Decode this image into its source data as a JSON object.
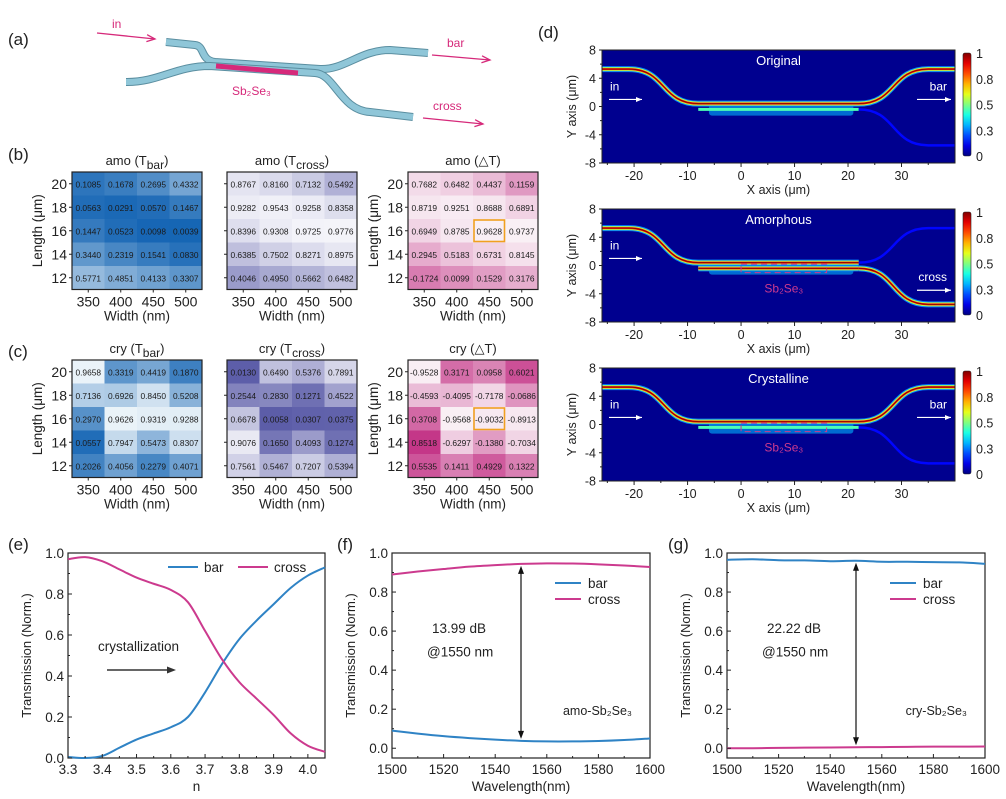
{
  "panels": {
    "a": {
      "label": "(a)",
      "in": "in",
      "bar": "bar",
      "cross": "cross",
      "material": "Sb₂Se₃"
    },
    "b": {
      "label": "(b)"
    },
    "c": {
      "label": "(c)"
    },
    "d": {
      "label": "(d)"
    },
    "e": {
      "label": "(e)"
    },
    "f": {
      "label": "(f)"
    },
    "g": {
      "label": "(g)"
    }
  },
  "colors": {
    "bar": "#2f83c5",
    "cross": "#cc3a8e",
    "highlight": "#f0a020",
    "waveguide": "#8fc6d8",
    "material": "#d6297a"
  },
  "chart_data": [
    {
      "id": "amo_tbar",
      "type": "heatmap",
      "title": "amo (T",
      "title_sub": "bar",
      "title_end": ")",
      "palette": "blue",
      "xlabel": "Width (nm)",
      "ylabel": "Length (μm)",
      "x": [
        "350",
        "400",
        "450",
        "500"
      ],
      "y": [
        "20",
        "18",
        "16",
        "14",
        "12"
      ],
      "values": [
        [
          0.1085,
          0.1678,
          0.2695,
          0.4332
        ],
        [
          0.0563,
          0.0291,
          0.057,
          0.1467
        ],
        [
          0.1447,
          0.0523,
          0.0098,
          0.0039
        ],
        [
          0.344,
          0.2319,
          0.1541,
          0.083
        ],
        [
          0.5771,
          0.4851,
          0.4133,
          0.3307
        ]
      ],
      "labels": [
        [
          "0.1085",
          "0.1678",
          "0.2695",
          "0.4332"
        ],
        [
          "0.0563",
          "0.0291",
          "0.0570",
          "0.1467"
        ],
        [
          "0.1447",
          "0.0523",
          "0.0098",
          "0.0039"
        ],
        [
          "0.3440",
          "0.2319",
          "0.1541",
          "0.0830"
        ],
        [
          "0.5771",
          "0.4851",
          "0.4133",
          "0.3307"
        ]
      ],
      "range": [
        0,
        1
      ],
      "highlight": null
    },
    {
      "id": "amo_tcross",
      "type": "heatmap",
      "title": "amo (T",
      "title_sub": "cross",
      "title_end": ")",
      "palette": "purple",
      "xlabel": "Width (nm)",
      "ylabel": "",
      "x": [
        "350",
        "400",
        "450",
        "500"
      ],
      "y": [
        "20",
        "18",
        "16",
        "14",
        "12"
      ],
      "values": [
        [
          0.8767,
          0.816,
          0.7132,
          0.5492
        ],
        [
          0.9282,
          0.9543,
          0.9258,
          0.8358
        ],
        [
          0.8396,
          0.9308,
          0.9725,
          0.9776
        ],
        [
          0.6385,
          0.7502,
          0.8271,
          0.8975
        ],
        [
          0.4046,
          0.495,
          0.5662,
          0.6482
        ]
      ],
      "labels": [
        [
          "0.8767",
          "0.8160",
          "0.7132",
          "0.5492"
        ],
        [
          "0.9282",
          "0.9543",
          "0.9258",
          "0.8358"
        ],
        [
          "0.8396",
          "0.9308",
          "0.9725",
          "0.9776"
        ],
        [
          "0.6385",
          "0.7502",
          "0.8271",
          "0.8975"
        ],
        [
          "0.4046",
          "0.4950",
          "0.5662",
          "0.6482"
        ]
      ],
      "range": [
        0,
        1
      ],
      "highlight": null
    },
    {
      "id": "amo_dt",
      "type": "heatmap",
      "title": "amo (△T)",
      "title_sub": "",
      "title_end": "",
      "palette": "pink",
      "xlabel": "Width (nm)",
      "ylabel": "Length (μm)",
      "x": [
        "350",
        "400",
        "450",
        "500"
      ],
      "y": [
        "20",
        "18",
        "16",
        "14",
        "12"
      ],
      "values": [
        [
          0.7682,
          0.6482,
          0.4437,
          0.1159
        ],
        [
          0.8719,
          0.9251,
          0.8688,
          0.6891
        ],
        [
          0.6949,
          0.8785,
          0.9628,
          0.9737
        ],
        [
          0.2945,
          0.5183,
          0.6731,
          0.8145
        ],
        [
          -0.1724,
          0.0099,
          0.1529,
          0.3176
        ]
      ],
      "labels": [
        [
          "0.7682",
          "0.6482",
          "0.4437",
          "0.1159"
        ],
        [
          "0.8719",
          "0.9251",
          "0.8688",
          "0.6891"
        ],
        [
          "0.6949",
          "0.8785",
          "0.9628",
          "0.9737"
        ],
        [
          "0.2945",
          "0.5183",
          "0.6731",
          "0.8145"
        ],
        [
          "-0.1724",
          "0.0099",
          "0.1529",
          "0.3176"
        ]
      ],
      "range": [
        -1,
        1
      ],
      "highlight": [
        2,
        2
      ]
    },
    {
      "id": "cry_tbar",
      "type": "heatmap",
      "title": "cry (T",
      "title_sub": "bar",
      "title_end": ")",
      "palette": "blue",
      "xlabel": "Width (nm)",
      "ylabel": "Length (μm)",
      "x": [
        "350",
        "400",
        "450",
        "500"
      ],
      "y": [
        "20",
        "18",
        "16",
        "14",
        "12"
      ],
      "values": [
        [
          0.9658,
          0.3319,
          0.4419,
          0.187
        ],
        [
          0.7136,
          0.6926,
          0.845,
          0.5208
        ],
        [
          0.297,
          0.9626,
          0.9319,
          0.9288
        ],
        [
          0.0557,
          0.7947,
          0.5473,
          0.8307
        ],
        [
          0.2026,
          0.4056,
          0.2279,
          0.4071
        ]
      ],
      "labels": [
        [
          "0.9658",
          "0.3319",
          "0.4419",
          "0.1870"
        ],
        [
          "0.7136",
          "0.6926",
          "0.8450",
          "0.5208"
        ],
        [
          "0.2970",
          "0.9626",
          "0.9319",
          "0.9288"
        ],
        [
          "0.0557",
          "0.7947",
          "0.5473",
          "0.8307"
        ],
        [
          "0.2026",
          "0.4056",
          "0.2279",
          "0.4071"
        ]
      ],
      "range": [
        0,
        1
      ],
      "highlight": null
    },
    {
      "id": "cry_tcross",
      "type": "heatmap",
      "title": "cry (T",
      "title_sub": "cross",
      "title_end": ")",
      "palette": "purple",
      "xlabel": "Width (nm)",
      "ylabel": "",
      "x": [
        "350",
        "400",
        "450",
        "500"
      ],
      "y": [
        "20",
        "18",
        "16",
        "14",
        "12"
      ],
      "values": [
        [
          0.013,
          0.649,
          0.5376,
          0.7891
        ],
        [
          0.2544,
          0.283,
          0.1271,
          0.4522
        ],
        [
          0.6678,
          0.0058,
          0.0307,
          0.0375
        ],
        [
          0.9076,
          0.165,
          0.4093,
          0.1274
        ],
        [
          0.7561,
          0.5467,
          0.7207,
          0.5394
        ]
      ],
      "labels": [
        [
          "0.0130",
          "0.6490",
          "0.5376",
          "0.7891"
        ],
        [
          "0.2544",
          "0.2830",
          "0.1271",
          "0.4522"
        ],
        [
          "0.6678",
          "0.0058",
          "0.0307",
          "0.0375"
        ],
        [
          "0.9076",
          "0.1650",
          "0.4093",
          "0.1274"
        ],
        [
          "0.7561",
          "0.5467",
          "0.7207",
          "0.5394"
        ]
      ],
      "range": [
        0,
        1
      ],
      "highlight": null
    },
    {
      "id": "cry_dt",
      "type": "heatmap",
      "title": "cry (△T)",
      "title_sub": "",
      "title_end": "",
      "palette": "pink",
      "xlabel": "Width (nm)",
      "ylabel": "Length (μm)",
      "x": [
        "350",
        "400",
        "450",
        "500"
      ],
      "y": [
        "20",
        "18",
        "16",
        "14",
        "12"
      ],
      "values": [
        [
          -0.9528,
          0.3171,
          0.0958,
          0.6021
        ],
        [
          -0.4593,
          -0.4095,
          -0.7178,
          -0.0686
        ],
        [
          0.3708,
          -0.9568,
          -0.9032,
          -0.8913
        ],
        [
          0.8518,
          -0.6297,
          -0.138,
          -0.7034
        ],
        [
          0.5535,
          0.1411,
          0.4929,
          0.1322
        ]
      ],
      "labels": [
        [
          "-0.9528",
          "0.3171",
          "0.0958",
          "0.6021"
        ],
        [
          "-0.4593",
          "-0.4095",
          "-0.7178",
          "-0.0686"
        ],
        [
          "0.3708",
          "-0.9568",
          "-0.9032",
          "-0.8913"
        ],
        [
          "0.8518",
          "-0.6297",
          "-0.1380",
          "-0.7034"
        ],
        [
          "0.5535",
          "0.1411",
          "0.4929",
          "0.1322"
        ]
      ],
      "range": [
        -1,
        1
      ],
      "highlight": [
        2,
        2
      ],
      "invert": true
    },
    {
      "id": "field_original",
      "type": "heatmap",
      "title": "Original",
      "state": "original",
      "xlabel": "X axis (μm)",
      "ylabel": "Y axis (μm)",
      "xlim": [
        -26,
        40
      ],
      "ylim": [
        -8,
        8
      ],
      "xticks": [
        -20,
        -10,
        0,
        10,
        20,
        30
      ],
      "yticks": [
        8,
        4,
        0,
        -4,
        -8
      ],
      "colorbar": {
        "ticks": [
          "1",
          "0.8",
          "0.5",
          "0.3",
          "0"
        ],
        "range": [
          0,
          1
        ]
      },
      "annotations": {
        "input": "in",
        "output": "bar",
        "material": ""
      }
    },
    {
      "id": "field_amorphous",
      "type": "heatmap",
      "title": "Amorphous",
      "state": "amorphous",
      "xlabel": "X axis (μm)",
      "ylabel": "Y axis (μm)",
      "xlim": [
        -26,
        40
      ],
      "ylim": [
        -8,
        8
      ],
      "xticks": [
        -20,
        -10,
        0,
        10,
        20,
        30
      ],
      "yticks": [
        8,
        4,
        0,
        -4,
        -8
      ],
      "colorbar": {
        "ticks": [
          "1",
          "0.8",
          "0.5",
          "0.3",
          "0"
        ],
        "range": [
          0,
          1
        ]
      },
      "annotations": {
        "input": "in",
        "output": "cross",
        "material": "Sb₂Se₃"
      },
      "material_region_x": [
        0,
        16
      ]
    },
    {
      "id": "field_crystalline",
      "type": "heatmap",
      "title": "Crystalline",
      "state": "crystalline",
      "xlabel": "X axis (μm)",
      "ylabel": "Y axis (μm)",
      "xlim": [
        -26,
        40
      ],
      "ylim": [
        -8,
        8
      ],
      "xticks": [
        -20,
        -10,
        0,
        10,
        20,
        30
      ],
      "yticks": [
        8,
        4,
        0,
        -4,
        -8
      ],
      "colorbar": {
        "ticks": [
          "1",
          "0.8",
          "0.5",
          "0.3",
          "0"
        ],
        "range": [
          0,
          1
        ]
      },
      "annotations": {
        "input": "in",
        "output": "bar",
        "material": "Sb₂Se₃"
      },
      "material_region_x": [
        0,
        16
      ]
    },
    {
      "id": "trans_vs_n",
      "type": "line",
      "title": "",
      "xlabel": "n",
      "ylabel": "Transmission (Norm.)",
      "xlim": [
        3.3,
        4.05
      ],
      "ylim": [
        0,
        1
      ],
      "xticks": [
        "3.3",
        "3.4",
        "3.5",
        "3.6",
        "3.7",
        "3.8",
        "3.9",
        "4.0"
      ],
      "yticks": [
        "0.0",
        "0.2",
        "0.4",
        "0.6",
        "0.8",
        "1.0"
      ],
      "legend": "top-right-horizontal",
      "annotation": "crystallization",
      "x": [
        3.3,
        3.35,
        3.4,
        3.45,
        3.5,
        3.55,
        3.6,
        3.65,
        3.7,
        3.75,
        3.8,
        3.85,
        3.9,
        3.95,
        4.0,
        4.05
      ],
      "series": [
        {
          "name": "bar",
          "color": "#2f83c5",
          "values": [
            0.005,
            0.0,
            0.01,
            0.05,
            0.09,
            0.12,
            0.15,
            0.2,
            0.32,
            0.46,
            0.58,
            0.67,
            0.75,
            0.83,
            0.89,
            0.93
          ]
        },
        {
          "name": "cross",
          "color": "#cc3a8e",
          "values": [
            0.97,
            0.98,
            0.96,
            0.92,
            0.88,
            0.85,
            0.82,
            0.76,
            0.62,
            0.48,
            0.37,
            0.29,
            0.21,
            0.12,
            0.06,
            0.03
          ]
        }
      ]
    },
    {
      "id": "amo_spectrum",
      "type": "line",
      "title": "",
      "xlabel": "Wavelength(nm)",
      "ylabel": "Transmission (Norm.)",
      "xlim": [
        1500,
        1600
      ],
      "ylim": [
        -0.05,
        1.0
      ],
      "xticks": [
        "1500",
        "1520",
        "1540",
        "1560",
        "1580",
        "1600"
      ],
      "yticks": [
        "0.0",
        "0.2",
        "0.4",
        "0.6",
        "0.8",
        "1.0"
      ],
      "legend": "top-right",
      "annotation": "13.99 dB",
      "annotation2": "@1550 nm",
      "material_label": "amo-Sb₂Se₃",
      "arrow_x": 1550,
      "x": [
        1500,
        1510,
        1520,
        1530,
        1540,
        1550,
        1560,
        1570,
        1580,
        1590,
        1600
      ],
      "series": [
        {
          "name": "bar",
          "color": "#2f83c5",
          "values": [
            0.09,
            0.075,
            0.062,
            0.052,
            0.044,
            0.038,
            0.035,
            0.035,
            0.037,
            0.042,
            0.05
          ]
        },
        {
          "name": "cross",
          "color": "#cc3a8e",
          "values": [
            0.89,
            0.905,
            0.918,
            0.93,
            0.938,
            0.944,
            0.947,
            0.946,
            0.942,
            0.936,
            0.928
          ]
        }
      ]
    },
    {
      "id": "cry_spectrum",
      "type": "line",
      "title": "",
      "xlabel": "Wavelength(nm)",
      "ylabel": "Transmission (Norm.)",
      "xlim": [
        1500,
        1600
      ],
      "ylim": [
        -0.05,
        1.0
      ],
      "xticks": [
        "1500",
        "1520",
        "1540",
        "1560",
        "1580",
        "1600"
      ],
      "yticks": [
        "0.0",
        "0.2",
        "0.4",
        "0.6",
        "0.8",
        "1.0"
      ],
      "legend": "top-right",
      "annotation": "22.22 dB",
      "annotation2": "@1550 nm",
      "material_label": "cry-Sb₂Se₃",
      "arrow_x": 1550,
      "x": [
        1500,
        1510,
        1520,
        1530,
        1540,
        1550,
        1560,
        1570,
        1580,
        1590,
        1600
      ],
      "series": [
        {
          "name": "bar",
          "color": "#2f83c5",
          "values": [
            0.965,
            0.968,
            0.963,
            0.962,
            0.958,
            0.96,
            0.955,
            0.955,
            0.953,
            0.952,
            0.945
          ]
        },
        {
          "name": "cross",
          "color": "#cc3a8e",
          "values": [
            0.0,
            0.0,
            0.002,
            0.003,
            0.004,
            0.005,
            0.006,
            0.007,
            0.008,
            0.008,
            0.009
          ]
        }
      ]
    }
  ]
}
